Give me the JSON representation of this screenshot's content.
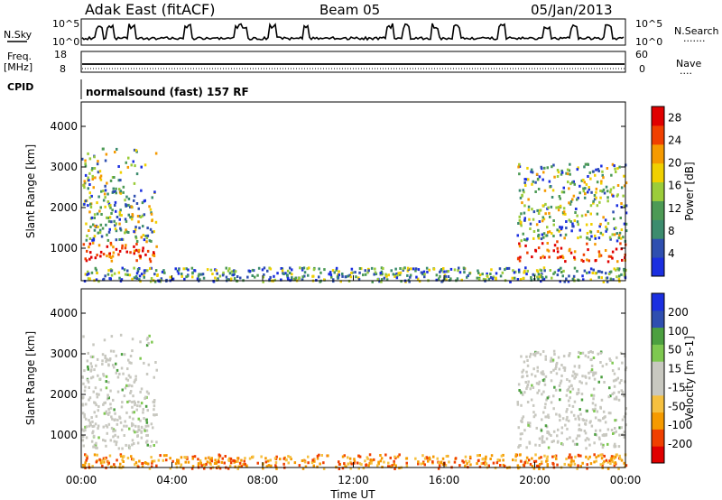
{
  "header": {
    "radar_name": "Adak East (fitACF)",
    "beam": "Beam 05",
    "date": "05/Jan/2013"
  },
  "aux_panels": {
    "nsky": {
      "left_label": "N.Sky",
      "right_label": "N.Search",
      "right_dots": "·······",
      "left_ticks": [
        "10^5",
        "10^0"
      ],
      "right_ticks": [
        "10^5",
        "10^0"
      ]
    },
    "freq": {
      "left_label": "Freq.",
      "left_unit": "[MHz]",
      "right_label": "Nave",
      "right_dots": "····",
      "left_ticks": [
        "18",
        "8"
      ],
      "right_ticks": [
        "60",
        "0"
      ]
    },
    "cpid": {
      "label": "CPID",
      "value": "normalsound (fast) 157 RF"
    }
  },
  "colors": {
    "power_scale": [
      "#1b2fe0",
      "#2f4fb0",
      "#3c8c6e",
      "#4d9a55",
      "#9bcc3a",
      "#f0d000",
      "#f59a00",
      "#f04000",
      "#e00000"
    ],
    "velocity_scale": [
      "#e00000",
      "#f04000",
      "#f59a00",
      "#f5c040",
      "#c8c8c0",
      "#c8c8c0",
      "#7ec850",
      "#4ca040",
      "#2f4fb0",
      "#1b2fe0"
    ]
  },
  "chart_data": [
    {
      "type": "heatmap",
      "panel": "power",
      "ylabel": "Slant Range [km]",
      "yticks": [
        "1000",
        "2000",
        "3000",
        "4000"
      ],
      "ylim": [
        200,
        4600
      ],
      "xticks": [
        "00:00",
        "04:00",
        "08:00",
        "12:00",
        "16:00",
        "20:00",
        "00:00"
      ],
      "xlim": [
        0,
        24
      ],
      "colorbar": {
        "label": "Power [dB]",
        "ticks": [
          "4",
          "8",
          "12",
          "16",
          "20",
          "24",
          "28"
        ],
        "range": [
          0,
          30
        ]
      },
      "regions": [
        {
          "name": "morning-echo",
          "t_start": 0.0,
          "t_end": 3.3,
          "r_low": 700,
          "r_high": 3500
        },
        {
          "name": "evening-echo",
          "t_start": 19.2,
          "t_end": 24.0,
          "r_low": 700,
          "r_high": 3100
        },
        {
          "name": "near-range-band",
          "t_start": 0.0,
          "t_end": 24.0,
          "r_low": 200,
          "r_high": 550
        }
      ]
    },
    {
      "type": "heatmap",
      "panel": "velocity",
      "ylabel": "Slant Range [km]",
      "yticks": [
        "1000",
        "2000",
        "3000",
        "4000"
      ],
      "ylim": [
        200,
        4600
      ],
      "xticks": [
        "00:00",
        "04:00",
        "08:00",
        "12:00",
        "16:00",
        "20:00",
        "00:00"
      ],
      "xlim": [
        0,
        24
      ],
      "xlabel": "Time UT",
      "colorbar": {
        "label": "Velocity [m s-1]",
        "ticks": [
          "200",
          "100",
          "50",
          "15",
          "-15",
          "-50",
          "-100",
          "-200"
        ],
        "range": [
          -250,
          250
        ]
      },
      "regions": [
        {
          "name": "morning-echo",
          "t_start": 0.0,
          "t_end": 3.3,
          "r_low": 700,
          "r_high": 3500
        },
        {
          "name": "evening-echo",
          "t_start": 19.2,
          "t_end": 24.0,
          "r_low": 700,
          "r_high": 3100
        },
        {
          "name": "near-range-band",
          "t_start": 0.0,
          "t_end": 24.0,
          "r_low": 200,
          "r_high": 550
        }
      ]
    }
  ]
}
